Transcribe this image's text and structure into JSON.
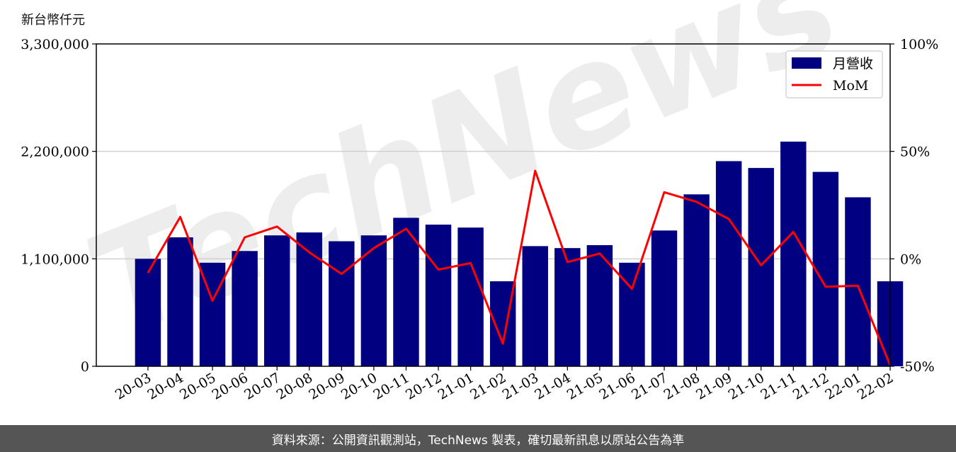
{
  "chart_data": {
    "type": "bar",
    "unit_label": "新台幣仟元",
    "categories": [
      "20-03",
      "20-04",
      "20-05",
      "20-06",
      "20-07",
      "20-08",
      "20-09",
      "20-10",
      "20-11",
      "20-12",
      "21-01",
      "21-02",
      "21-03",
      "21-04",
      "21-05",
      "21-06",
      "21-07",
      "21-08",
      "21-09",
      "21-10",
      "21-11",
      "21-12",
      "22-01",
      "22-02"
    ],
    "series": [
      {
        "name": "月營收",
        "kind": "bar",
        "axis": "left",
        "color": "#000080",
        "values": [
          1100000,
          1320000,
          1060000,
          1180000,
          1340000,
          1370000,
          1280000,
          1340000,
          1520000,
          1450000,
          1420000,
          870000,
          1230000,
          1210000,
          1240000,
          1060000,
          1390000,
          1760000,
          2100000,
          2030000,
          2300000,
          1990000,
          1730000,
          870000
        ]
      },
      {
        "name": "MoM",
        "kind": "line",
        "axis": "right",
        "color": "#ff0000",
        "values": [
          -6.5,
          19.5,
          -19.5,
          10,
          15,
          3,
          -7,
          5,
          14,
          -5,
          -2,
          -39.5,
          41,
          -1.5,
          2.5,
          -14,
          31,
          26.5,
          18.5,
          -3,
          12.5,
          -13,
          -12.5,
          -49.5
        ]
      }
    ],
    "left_axis": {
      "ylim": [
        0,
        3300000
      ],
      "ticks": [
        0,
        1100000,
        2200000,
        3300000
      ],
      "tick_labels": [
        "0",
        "1,100,000",
        "2,200,000",
        "3,300,000"
      ]
    },
    "right_axis": {
      "ylim": [
        -50,
        100
      ],
      "ticks": [
        -50,
        0,
        50,
        100
      ],
      "tick_labels": [
        "-50%",
        "0%",
        "50%",
        "100%"
      ]
    },
    "grid": "horizontal",
    "legend_position": "top-right",
    "watermark": "TechNews"
  },
  "footer": {
    "text": "資料來源：公開資訊觀測站，TechNews 製表，確切最新訊息以原站公告為準"
  }
}
